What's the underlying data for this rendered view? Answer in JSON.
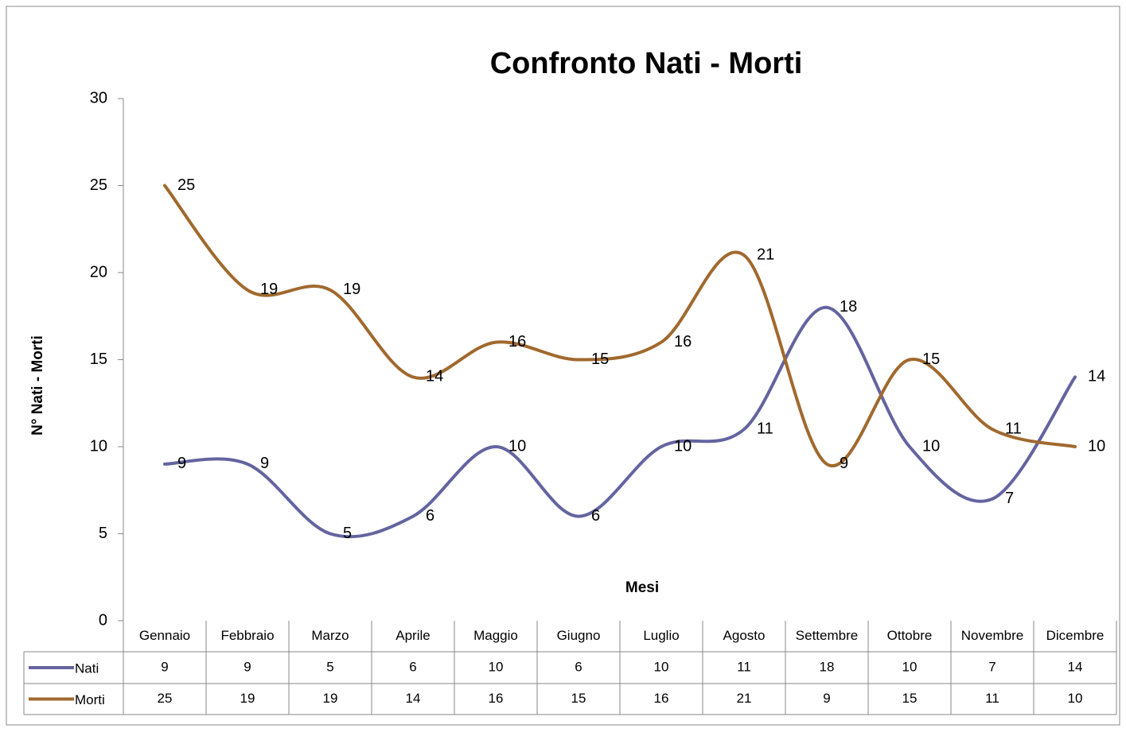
{
  "chart_data": {
    "type": "line",
    "title": "Confronto Nati - Morti",
    "y_label": "N° Nati - Morti",
    "x_label": "Mesi",
    "categories": [
      "Gennaio",
      "Febbraio",
      "Marzo",
      "Aprile",
      "Maggio",
      "Giugno",
      "Luglio",
      "Agosto",
      "Settembre",
      "Ottobre",
      "Novembre",
      "Dicembre"
    ],
    "series": [
      {
        "name": "Nati",
        "color": "#6464a0",
        "values": [
          9,
          9,
          5,
          6,
          10,
          6,
          10,
          11,
          18,
          10,
          7,
          14
        ]
      },
      {
        "name": "Morti",
        "color": "#a0692e",
        "values": [
          25,
          19,
          19,
          14,
          16,
          15,
          16,
          21,
          9,
          15,
          11,
          10
        ]
      }
    ],
    "ylim": [
      0,
      30
    ],
    "yticks": [
      0,
      5,
      10,
      15,
      20,
      25,
      30
    ],
    "smooth": true,
    "data_table": true
  }
}
